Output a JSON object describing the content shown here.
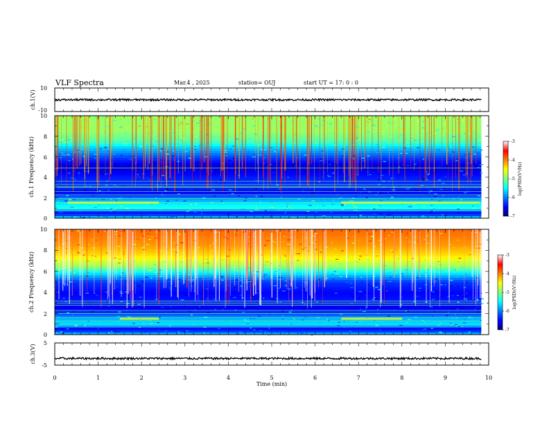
{
  "header": {
    "title": "VLF Spectra",
    "date": "Mar.4 , 2025",
    "station": "station= OUJ",
    "start": "start UT = 17: 0 : 0"
  },
  "chart_data": [
    {
      "type": "line",
      "panel": "ch1-waveform",
      "ylabel": "ch.1(V)",
      "ylim": [
        -10,
        10
      ],
      "yticks": [
        "10",
        "-10"
      ],
      "x": [
        0,
        9.83
      ],
      "approx_level": 0,
      "color": "#000000"
    },
    {
      "type": "heatmap",
      "panel": "ch1-spectrogram",
      "ylabel": "ch.1 Frequency (kHz)",
      "ylim": [
        0,
        10
      ],
      "yticks": [
        "10",
        "8",
        "6",
        "4",
        "2",
        "0"
      ],
      "xlim": [
        0,
        10
      ],
      "data_end_min": 9.83,
      "colorbar": {
        "label": "log(PSD)(V²/Hz)",
        "range": [
          -7,
          -3
        ],
        "ticks": [
          "-3",
          "-4",
          "-5",
          "-6",
          "-7"
        ]
      },
      "profile": [
        {
          "f": 0,
          "v": -5.5
        },
        {
          "f": 0.5,
          "v": -6.6
        },
        {
          "f": 1,
          "v": -5.4
        },
        {
          "f": 1.5,
          "v": -5.6
        },
        {
          "f": 2,
          "v": -6.0
        },
        {
          "f": 2.5,
          "v": -6.6
        },
        {
          "f": 3,
          "v": -6.3
        },
        {
          "f": 4,
          "v": -6.4
        },
        {
          "f": 5,
          "v": -6.7
        },
        {
          "f": 6,
          "v": -6.2
        },
        {
          "f": 7,
          "v": -5.6
        },
        {
          "f": 7.5,
          "v": -5.2
        },
        {
          "f": 8.5,
          "v": -4.9
        },
        {
          "f": 10,
          "v": -4.9
        }
      ],
      "bands_khz": [
        0.8,
        1.5,
        1.9,
        2.3,
        2.6,
        3.0,
        3.1,
        3.3,
        3.6,
        4.9
      ],
      "enhanced_segments": [
        {
          "f": 1.5,
          "t0": 0.3,
          "t1": 2.4
        },
        {
          "f": 1.5,
          "t0": 6.6,
          "t1": 9.8
        }
      ]
    },
    {
      "type": "heatmap",
      "panel": "ch2-spectrogram",
      "ylabel": "ch.2 Frequency (kHz)",
      "ylim": [
        0,
        10
      ],
      "yticks": [
        "10",
        "8",
        "6",
        "4",
        "2",
        "0"
      ],
      "xlim": [
        0,
        10
      ],
      "data_end_min": 9.83,
      "colorbar": {
        "label": "log(PSD)(V²/Hz)",
        "range": [
          -7,
          -3
        ],
        "ticks": [
          "-3",
          "-4",
          "-5",
          "-6",
          "-7"
        ]
      },
      "profile": [
        {
          "f": 0,
          "v": -5.6
        },
        {
          "f": 0.5,
          "v": -6.6
        },
        {
          "f": 1,
          "v": -5.6
        },
        {
          "f": 1.5,
          "v": -5.8
        },
        {
          "f": 2,
          "v": -6.2
        },
        {
          "f": 2.5,
          "v": -6.6
        },
        {
          "f": 3,
          "v": -6.4
        },
        {
          "f": 4,
          "v": -6.5
        },
        {
          "f": 5,
          "v": -6.3
        },
        {
          "f": 5.8,
          "v": -5.6
        },
        {
          "f": 6.5,
          "v": -4.9
        },
        {
          "f": 7.5,
          "v": -4.4
        },
        {
          "f": 8.5,
          "v": -4.1
        },
        {
          "f": 10,
          "v": -3.9
        }
      ],
      "bands_khz": [
        0.8,
        1.3,
        1.6,
        2.0,
        2.3,
        2.8,
        3.0,
        3.2
      ],
      "enhanced_segments": [
        {
          "f": 1.5,
          "t0": 1.5,
          "t1": 2.4
        },
        {
          "f": 1.5,
          "t0": 6.6,
          "t1": 8.0
        }
      ]
    },
    {
      "type": "line",
      "panel": "ch3-waveform",
      "ylabel": "ch.3(V)",
      "ylim": [
        -5,
        5
      ],
      "yticks": [
        "5",
        "-5"
      ],
      "x": [
        0,
        9.83
      ],
      "approx_level": -2,
      "color": "#000000"
    }
  ],
  "x_axis": {
    "label": "Time (min)",
    "range": [
      0,
      10
    ],
    "ticks": [
      "0",
      "1",
      "2",
      "3",
      "4",
      "5",
      "6",
      "7",
      "8",
      "9",
      "10"
    ]
  }
}
